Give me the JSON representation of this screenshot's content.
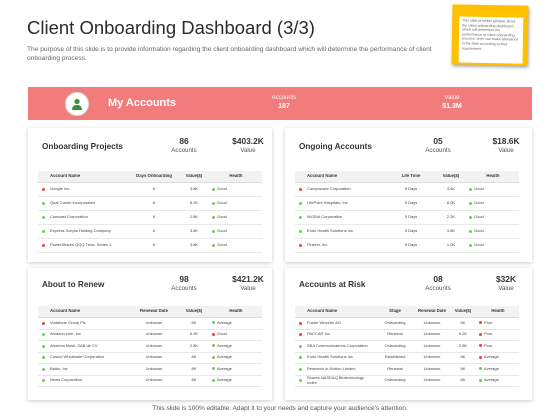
{
  "header": {
    "title": "Client Onboarding Dashboard (3/3)",
    "description": "The purpose of this slide is to provide information regarding the client onboarding dashboard which will determine the performance of client onboarding process."
  },
  "sticky_note": {
    "text": "This slide provides glimpse about the client onboarding dashboard which will determine the performance of client onboarding process. User can make alterations in the slide according to their requirement."
  },
  "banner": {
    "title": "My Accounts",
    "accounts_label": "Accounts",
    "accounts_value": "187",
    "value_label": "Value",
    "value_value": "$1.3M",
    "avatar_icon": "user-icon"
  },
  "colors": {
    "accent": "#f27c7c",
    "green": "#7cc36b",
    "red": "#e04848",
    "sticky": "#ffc000"
  },
  "cards": {
    "onboarding": {
      "title": "Onboarding Projects",
      "kpi1_num": "86",
      "kpi1_lbl": "Accounts",
      "kpi2_num": "$403.2K",
      "kpi2_lbl": "Value",
      "columns": [
        "Account Name",
        "Days Onboarding",
        "Value($)",
        "Health"
      ],
      "rows": [
        {
          "name": "Google Inc.",
          "c2": "6",
          "c3": "3.8K",
          "health": "Good",
          "status": "red",
          "hstatus": "green"
        },
        {
          "name": "Qual Comm Incorporated",
          "c2": "6",
          "c3": "8.2K",
          "health": "Good",
          "status": "green",
          "hstatus": "green"
        },
        {
          "name": "Comcast Corporation",
          "c2": "6",
          "c3": "2.8K",
          "health": "Good",
          "status": "green",
          "hstatus": "green"
        },
        {
          "name": "Express Scripts Holding Company",
          "c2": "6",
          "c3": "3.8K",
          "health": "Good",
          "status": "green",
          "hstatus": "green"
        },
        {
          "name": "PowerShares QQQ Trust, Series 1",
          "c2": "6",
          "c3": "3.8K",
          "health": "Good",
          "status": "red",
          "hstatus": "green"
        }
      ]
    },
    "ongoing": {
      "title": "Ongoing Accounts",
      "kpi1_num": "05",
      "kpi1_lbl": "Accounts",
      "kpi2_num": "$18.6K",
      "kpi2_lbl": "Value",
      "columns": [
        "Account Name",
        "Life Time",
        "Value($)",
        "Health"
      ],
      "rows": [
        {
          "name": "Compuware Corporation",
          "c2": "5 Days",
          "c3": "3.4K",
          "health": "Good",
          "status": "red",
          "hstatus": "green"
        },
        {
          "name": "LifePoint Hospitals, Inc",
          "c2": "5 Days",
          "c3": "8.0K",
          "health": "Good",
          "status": "green",
          "hstatus": "green"
        },
        {
          "name": "NVIDIA Corporation",
          "c2": "5 Days",
          "c3": "2.2K",
          "health": "Good",
          "status": "green",
          "hstatus": "green"
        },
        {
          "name": "Endo Health Solutions Inc",
          "c2": "5 Days",
          "c3": "3.8K",
          "health": "Good",
          "status": "green",
          "hstatus": "green"
        },
        {
          "name": "Finserv, Inc",
          "c2": "5 Days",
          "c3": "1.0K",
          "health": "Good",
          "status": "red",
          "hstatus": "green"
        }
      ]
    },
    "renew": {
      "title": "About to Renew",
      "kpi1_num": "98",
      "kpi1_lbl": "Accounts",
      "kpi2_num": "$421.2K",
      "kpi2_lbl": "Value",
      "columns": [
        "Account Name",
        "Renewal Date",
        "Value($)",
        "Health"
      ],
      "rows": [
        {
          "name": "Vodafone Group Plc",
          "c2": "Unknown",
          "c3": "8K",
          "health": "Average",
          "status": "red",
          "hstatus": "green"
        },
        {
          "name": "Amazon.com, Inc",
          "c2": "Unknown",
          "c3": "6.2K",
          "health": "Good",
          "status": "green",
          "hstatus": "red"
        },
        {
          "name": "America Movil, SAB de CV",
          "c2": "Unknown",
          "c3": "2.8K",
          "health": "Average",
          "status": "green",
          "hstatus": "green"
        },
        {
          "name": "Costco Wholesale Corporation",
          "c2": "Unknown",
          "c3": "8K",
          "health": "Average",
          "status": "green",
          "hstatus": "green"
        },
        {
          "name": "Baidu, Inc",
          "c2": "Unknown",
          "c3": "8K",
          "health": "Average",
          "status": "green",
          "hstatus": "green"
        },
        {
          "name": "News Corporation",
          "c2": "Unknown",
          "c3": "8K",
          "health": "Average",
          "status": "green",
          "hstatus": "green"
        }
      ]
    },
    "risk": {
      "title": "Accounts at Risk",
      "kpi1_num": "08",
      "kpi1_lbl": "Accounts",
      "kpi2_num": "$32K",
      "kpi2_lbl": "Value",
      "columns": [
        "Account Name",
        "Stage",
        "Renewal Date",
        "Value($)",
        "Health"
      ],
      "rows": [
        {
          "name": "Foster Wheeler AG",
          "c2": "Onboarding",
          "c3": "Unknown",
          "c4": "8K",
          "health": "Poor",
          "status": "red",
          "hstatus": "red"
        },
        {
          "name": "PACCAR Inc",
          "c2": "Renewal",
          "c3": "Unknown",
          "c4": "6.2K",
          "health": "Poor",
          "status": "red",
          "hstatus": "red"
        },
        {
          "name": "SBA Communications Corporation",
          "c2": "Onboarding",
          "c3": "Unknown",
          "c4": "2.8K",
          "health": "Poor",
          "status": "green",
          "hstatus": "red"
        },
        {
          "name": "Endo Health Solutions Inc",
          "c2": "Established",
          "c3": "Unknown",
          "c4": "8K",
          "health": "Average",
          "status": "green",
          "hstatus": "red"
        },
        {
          "name": "Research in Motion Limited",
          "c2": "Renewal",
          "c3": "Unknown",
          "c4": "8K",
          "health": "Average",
          "status": "green",
          "hstatus": "green"
        },
        {
          "name": "Shares NASDAQ Biotechnology Index",
          "c2": "Onboarding",
          "c3": "Unknown",
          "c4": "8K",
          "health": "Average",
          "status": "green",
          "hstatus": "green"
        }
      ]
    }
  },
  "footer": {
    "text": "This slide is 100% editable. Adapt it to your needs and capture your audience's attention."
  }
}
